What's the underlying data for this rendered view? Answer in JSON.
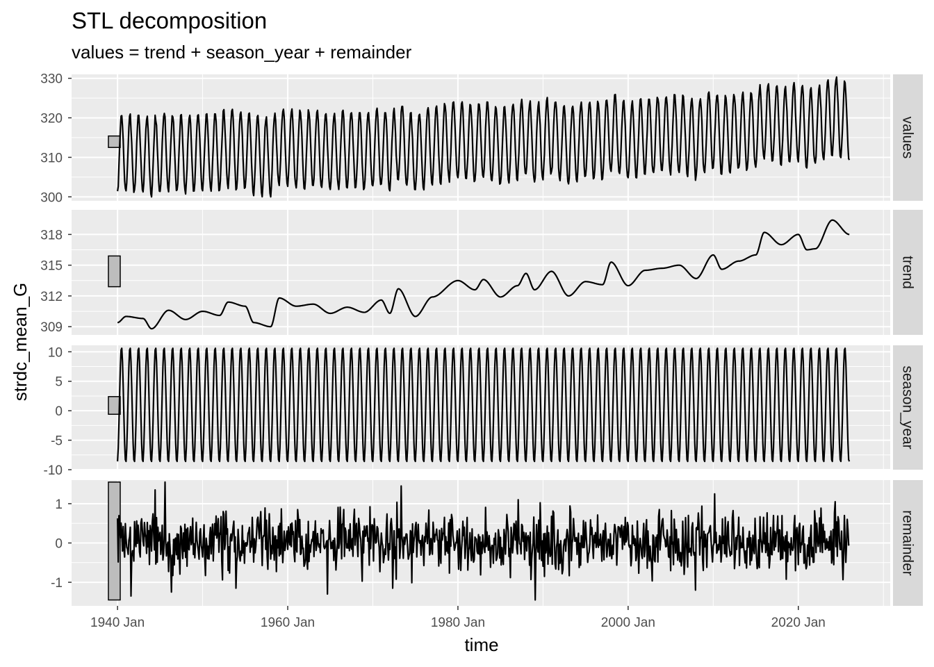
{
  "chart_data": {
    "type": "line",
    "title": "STL decomposition",
    "subtitle": "values = trend + season_year + remainder",
    "xlabel": "time",
    "ylabel": "strdc_mean_G",
    "x_range": [
      "1940 Jan",
      "2026 Jan"
    ],
    "xlim": [
      1934.6,
      2030.8
    ],
    "x_ticks": [
      {
        "value": 1940,
        "label": "1940 Jan"
      },
      {
        "value": 1960,
        "label": "1960 Jan"
      },
      {
        "value": 1980,
        "label": "1980 Jan"
      },
      {
        "value": 2000,
        "label": "2000 Jan"
      },
      {
        "value": 2020,
        "label": "2020 Jan"
      }
    ],
    "x_minor_ticks": [
      1950,
      1970,
      1990,
      2010,
      2030
    ],
    "grid": true,
    "line_color": "#000000",
    "panel_background": "#ebebeb",
    "strip_background": "#d9d9d9",
    "scale_bar_fill": "#bdbdbd",
    "series": [
      {
        "name": "values",
        "ylim": [
          299,
          331
        ],
        "y_ticks": [
          300,
          310,
          320,
          330
        ],
        "scale_bar": [
          312.5,
          315.4
        ],
        "trend_points": [
          [
            1940,
            309.4
          ],
          [
            1941,
            310.0
          ],
          [
            1943,
            309.8
          ],
          [
            1944,
            308.8
          ],
          [
            1946,
            310.6
          ],
          [
            1948,
            309.7
          ],
          [
            1950,
            310.5
          ],
          [
            1952,
            310.1
          ],
          [
            1953,
            311.4
          ],
          [
            1955,
            311.0
          ],
          [
            1956,
            309.4
          ],
          [
            1958,
            309.0
          ],
          [
            1959,
            311.8
          ],
          [
            1961,
            311.0
          ],
          [
            1963,
            311.2
          ],
          [
            1965,
            310.3
          ],
          [
            1967,
            310.9
          ],
          [
            1969,
            310.4
          ],
          [
            1971,
            311.6
          ],
          [
            1972,
            310.3
          ],
          [
            1973,
            312.7
          ],
          [
            1975,
            310.0
          ],
          [
            1977,
            311.9
          ],
          [
            1980,
            313.5
          ],
          [
            1982,
            312.6
          ],
          [
            1983,
            313.6
          ],
          [
            1985,
            311.9
          ],
          [
            1987,
            313.0
          ],
          [
            1988,
            314.2
          ],
          [
            1989,
            312.6
          ],
          [
            1991,
            314.4
          ],
          [
            1993,
            312.0
          ],
          [
            1995,
            313.4
          ],
          [
            1997,
            313.1
          ],
          [
            1998,
            315.3
          ],
          [
            2000,
            313.0
          ],
          [
            2002,
            314.5
          ],
          [
            2004,
            314.7
          ],
          [
            2006,
            315.0
          ],
          [
            2008,
            313.7
          ],
          [
            2010,
            316.0
          ],
          [
            2011,
            314.6
          ],
          [
            2013,
            315.4
          ],
          [
            2015,
            316.0
          ],
          [
            2016,
            318.2
          ],
          [
            2018,
            317.0
          ],
          [
            2020,
            318.0
          ],
          [
            2021,
            316.5
          ],
          [
            2022,
            316.6
          ],
          [
            2024,
            319.4
          ],
          [
            2026,
            318.0
          ]
        ],
        "seasonal_amplitude": 9.8,
        "noise_sd": 0.5
      },
      {
        "name": "trend",
        "ylim": [
          308.2,
          320.4
        ],
        "y_ticks": [
          309,
          312,
          315,
          318
        ],
        "scale_bar": [
          312.9,
          315.9
        ],
        "points": [
          [
            1940,
            309.4
          ],
          [
            1941,
            310.0
          ],
          [
            1943,
            309.8
          ],
          [
            1944,
            308.8
          ],
          [
            1946,
            310.6
          ],
          [
            1948,
            309.7
          ],
          [
            1950,
            310.5
          ],
          [
            1952,
            310.1
          ],
          [
            1953,
            311.4
          ],
          [
            1955,
            311.0
          ],
          [
            1956,
            309.4
          ],
          [
            1958,
            309.0
          ],
          [
            1959,
            311.8
          ],
          [
            1961,
            311.0
          ],
          [
            1963,
            311.2
          ],
          [
            1965,
            310.3
          ],
          [
            1967,
            310.9
          ],
          [
            1969,
            310.4
          ],
          [
            1971,
            311.6
          ],
          [
            1972,
            310.3
          ],
          [
            1973,
            312.7
          ],
          [
            1975,
            310.0
          ],
          [
            1977,
            311.9
          ],
          [
            1980,
            313.5
          ],
          [
            1982,
            312.6
          ],
          [
            1983,
            313.6
          ],
          [
            1985,
            311.9
          ],
          [
            1987,
            313.0
          ],
          [
            1988,
            314.2
          ],
          [
            1989,
            312.6
          ],
          [
            1991,
            314.4
          ],
          [
            1993,
            312.0
          ],
          [
            1995,
            313.4
          ],
          [
            1997,
            313.1
          ],
          [
            1998,
            315.3
          ],
          [
            2000,
            313.0
          ],
          [
            2002,
            314.5
          ],
          [
            2004,
            314.7
          ],
          [
            2006,
            315.0
          ],
          [
            2008,
            313.7
          ],
          [
            2010,
            316.0
          ],
          [
            2011,
            314.6
          ],
          [
            2013,
            315.4
          ],
          [
            2015,
            316.0
          ],
          [
            2016,
            318.2
          ],
          [
            2018,
            317.0
          ],
          [
            2020,
            318.0
          ],
          [
            2021,
            316.5
          ],
          [
            2022,
            316.6
          ],
          [
            2024,
            319.4
          ],
          [
            2026,
            318.0
          ]
        ]
      },
      {
        "name": "season_year",
        "ylim": [
          -10,
          11.1
        ],
        "y_ticks": [
          -10,
          -5,
          0,
          5,
          10
        ],
        "y_tick_labels": [
          "-10",
          "-5",
          "0",
          "5",
          "10"
        ],
        "scale_bar": [
          -0.6,
          2.4
        ],
        "seasonal_max": 10.8,
        "seasonal_min": -8.8
      },
      {
        "name": "remainder",
        "ylim": [
          -1.6,
          1.6
        ],
        "y_ticks": [
          -1,
          0,
          1
        ],
        "y_tick_labels": [
          "-1",
          "0",
          "1"
        ],
        "scale_bar": [
          -1.45,
          1.55
        ],
        "noise_sd": 0.4,
        "spikes": [
          [
            1944.4,
            1.35
          ],
          [
            1945.6,
            1.55
          ],
          [
            1941.6,
            -1.35
          ],
          [
            1946.3,
            -1.25
          ],
          [
            1953.9,
            -1.15
          ],
          [
            1964.7,
            -1.3
          ],
          [
            1972.3,
            -1.15
          ],
          [
            1973.3,
            1.45
          ],
          [
            1989.1,
            -1.45
          ],
          [
            2010.2,
            1.25
          ],
          [
            2007.9,
            -1.2
          ],
          [
            2024.3,
            1.05
          ]
        ]
      }
    ]
  }
}
